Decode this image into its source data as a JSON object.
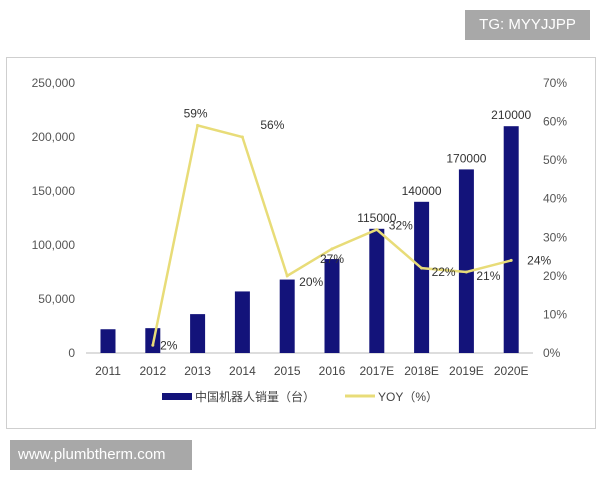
{
  "overlays": {
    "top_right_tag": "TG: MYYJJPP",
    "bottom_left_tag": "www.plumbtherm.com"
  },
  "chart_data": {
    "type": "bar+line",
    "categories": [
      "2011",
      "2012",
      "2013",
      "2014",
      "2015",
      "2016",
      "2017E",
      "2018E",
      "2019E",
      "2020E"
    ],
    "series": [
      {
        "name": "中国机器人销量（台）",
        "type": "bar",
        "axis": "left",
        "color": "#13137a",
        "values": [
          22000,
          23000,
          36000,
          57000,
          68000,
          87000,
          115000,
          140000,
          170000,
          210000
        ],
        "data_labels": [
          null,
          null,
          null,
          null,
          null,
          null,
          "115000",
          "140000",
          "170000",
          "210000"
        ]
      },
      {
        "name": "YOY（%）",
        "type": "line",
        "axis": "right",
        "color": "#e8dc78",
        "values": [
          null,
          2,
          59,
          56,
          20,
          27,
          32,
          22,
          21,
          24
        ],
        "data_labels": [
          null,
          "2%",
          "59%",
          "56%",
          "20%",
          "27%",
          "32%",
          "22%",
          "21%",
          "24%"
        ]
      }
    ],
    "y_left": {
      "range": [
        0,
        250000
      ],
      "ticks": [
        "0",
        "50,000",
        "100,000",
        "150,000",
        "200,000",
        "250,000"
      ]
    },
    "y_right": {
      "range": [
        0,
        70
      ],
      "ticks": [
        "0%",
        "10%",
        "20%",
        "30%",
        "40%",
        "50%",
        "60%",
        "70%"
      ]
    },
    "grid": false,
    "legend": "bottom"
  }
}
